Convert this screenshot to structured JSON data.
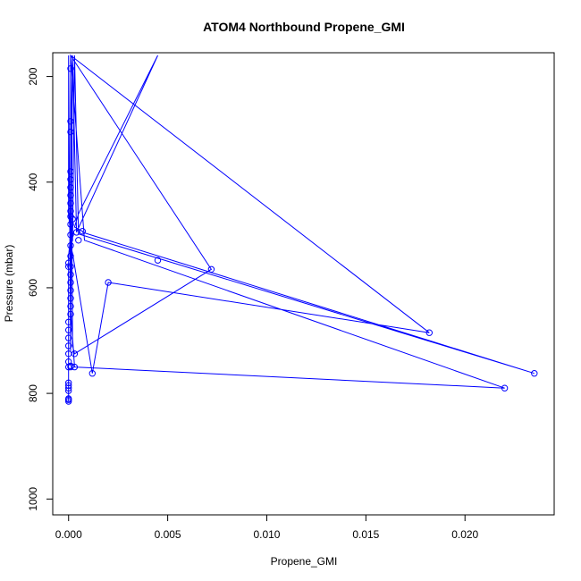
{
  "chart_data": {
    "type": "line",
    "title": "ATOM4 Northbound Propene_GMI",
    "xlabel": "Propene_GMI",
    "ylabel": "Pressure (mbar)",
    "xlim": [
      -0.0008,
      0.0245
    ],
    "ylim": [
      1030,
      155
    ],
    "y_reversed": true,
    "grid": false,
    "series_color": "#0000ff",
    "x_ticks": [
      0.0,
      0.005,
      0.01,
      0.015,
      0.02
    ],
    "x_tick_labels": [
      "0.000",
      "0.005",
      "0.010",
      "0.015",
      "0.020"
    ],
    "y_ticks": [
      200,
      400,
      600,
      800,
      1000
    ],
    "y_tick_labels": [
      "200",
      "400",
      "600",
      "800",
      "1000"
    ],
    "series": [
      {
        "x": [
          0.0001,
          0.0001,
          0.0001,
          0.0001,
          0.0002,
          0.0004,
          0.0045,
          0.0005,
          0.0003,
          0.0007,
          0.0007,
          0.0235,
          0.0005,
          0.0003,
          0.0002,
          0.0001,
          0.0002,
          0.0012,
          0.002,
          0.0182,
          0.0001,
          0.0001,
          0.0003,
          0.022,
          0.0008,
          0.0001,
          0.0002,
          0.0003,
          0.0072,
          0.0001,
          0.0001,
          0.0001,
          0.0001,
          0.0002,
          0.0001,
          0.0001,
          0.0001,
          0.0001,
          0.0001,
          0.0001,
          0.0001,
          0.0001,
          0.0,
          0.0,
          0.0,
          0.0,
          0.0001,
          0.0,
          0.0,
          0.0,
          0.0,
          0.0,
          0.0,
          0.0,
          0.0,
          0.0,
          0.0,
          0.0,
          0.0,
          0.0,
          0.0,
          0.0,
          0.0,
          0.0
        ],
        "y": [
          160,
          350,
          470,
          480,
          160,
          495,
          160,
          460,
          485,
          493,
          495,
          762,
          498,
          160,
          510,
          520,
          535,
          762,
          590,
          685,
          160,
          640,
          750,
          790,
          510,
          160,
          710,
          725,
          565,
          160,
          300,
          418,
          683,
          160,
          400,
          450,
          500,
          560,
          600,
          640,
          680,
          720,
          160,
          380,
          410,
          460,
          500,
          540,
          580,
          620,
          660,
          700,
          740,
          785,
          790,
          800,
          810,
          815,
          780,
          760,
          740,
          720,
          700,
          680
        ]
      }
    ],
    "markers": {
      "x": [
        0.0002,
        0.0004,
        0.0005,
        0.0007,
        0.0045,
        0.0072,
        0.002,
        0.0012,
        0.0003,
        0.0003,
        0.0182,
        0.022,
        0.0235,
        0.0001,
        0.0001,
        0.0001,
        0.0001,
        0.0001,
        0.0001,
        0.0001,
        0.0001,
        0.0001,
        0.0001,
        0.0001,
        0.0001,
        0.0001,
        0.0001,
        0.0001,
        0.0001,
        0.0001,
        0.0001,
        0.0001,
        0.0001,
        0.0001,
        0.0,
        0.0,
        0.0,
        0.0,
        0.0,
        0.0,
        0.0,
        0.0,
        0.0,
        0.0,
        0.0,
        0.0,
        0.0,
        0.0,
        0.0,
        0.0,
        0.0001,
        0.0001
      ],
      "y": [
        470,
        495,
        510,
        493,
        548,
        565,
        590,
        762,
        725,
        750,
        685,
        790,
        762,
        185,
        285,
        305,
        380,
        395,
        410,
        425,
        440,
        455,
        465,
        480,
        500,
        520,
        540,
        560,
        575,
        590,
        605,
        620,
        635,
        650,
        665,
        680,
        695,
        710,
        725,
        740,
        750,
        780,
        785,
        790,
        795,
        810,
        812,
        815,
        553,
        560,
        748,
        750
      ]
    }
  }
}
